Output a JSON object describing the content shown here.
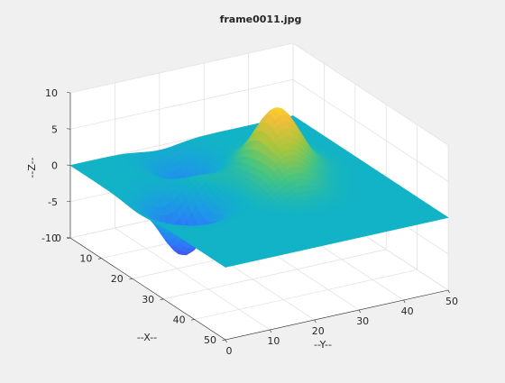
{
  "chart_data": {
    "type": "surface",
    "title": "frame0011.jpg",
    "xlabel": "--X--",
    "ylabel": "--Y--",
    "zlabel": "--Z--",
    "xlim": [
      0,
      50
    ],
    "ylim": [
      0,
      50
    ],
    "zlim": [
      -10,
      10
    ],
    "xticks": [
      "0",
      "10",
      "20",
      "30",
      "40",
      "50"
    ],
    "yticks": [
      "0",
      "10",
      "20",
      "30",
      "40",
      "50"
    ],
    "zticks": [
      "-10",
      "-5",
      "0",
      "5",
      "10"
    ],
    "grid": true,
    "colormap": "parula",
    "baseline_z": 0,
    "peaks": [
      {
        "x": 18,
        "y": 34,
        "amplitude": 8,
        "label": "yellow peak"
      },
      {
        "x": 26,
        "y": 30,
        "amplitude": 3.5,
        "label": "green-yellow bump"
      },
      {
        "x": 15,
        "y": 18,
        "amplitude": 1.5,
        "label": "small yellow bump"
      },
      {
        "x": 22,
        "y": 10,
        "amplitude": -7.5,
        "label": "deep blue trough"
      },
      {
        "x": 8,
        "y": 20,
        "amplitude": -4,
        "label": "blue trough"
      }
    ]
  }
}
